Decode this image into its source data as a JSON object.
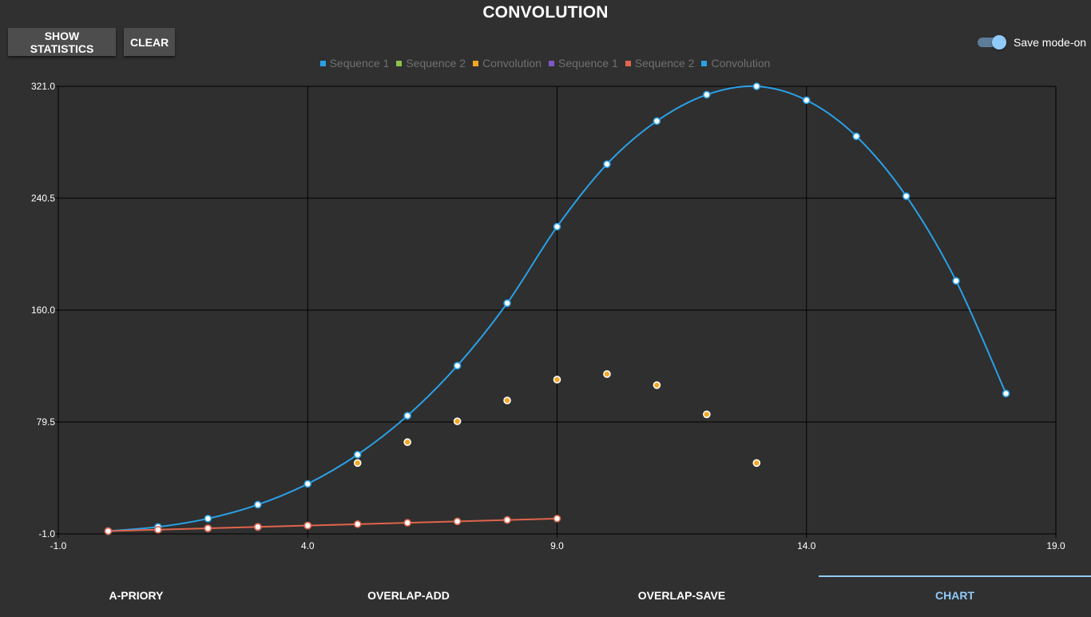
{
  "app": {
    "title": "CONVOLUTION"
  },
  "toolbar": {
    "show_statistics_label": "SHOW STATISTICS",
    "clear_label": "CLEAR"
  },
  "save_mode": {
    "label": "Save mode-on",
    "on": true
  },
  "legend": [
    {
      "label": "Sequence 1",
      "color": "#2aa0e6"
    },
    {
      "label": "Sequence 2",
      "color": "#8bc34a"
    },
    {
      "label": "Convolution",
      "color": "#f5a623"
    },
    {
      "label": "Sequence 1",
      "color": "#7e57c2"
    },
    {
      "label": "Sequence 2",
      "color": "#e0644b"
    },
    {
      "label": "Convolution",
      "color": "#2aa0e6"
    }
  ],
  "chart_data": {
    "type": "line",
    "xlim": [
      -1,
      19
    ],
    "ylim": [
      -1,
      321
    ],
    "x_ticks": [
      "-1.0",
      "4.0",
      "9.0",
      "14.0",
      "19.0"
    ],
    "y_ticks": [
      "-1.0",
      "79.5",
      "160.0",
      "240.5",
      "321.0"
    ],
    "grid": true,
    "series": [
      {
        "name": "Convolution",
        "color": "#2aa0e6",
        "line": true,
        "x": [
          0,
          1,
          2,
          3,
          4,
          5,
          6,
          7,
          8,
          9,
          10,
          11,
          12,
          13,
          14,
          15,
          16,
          17,
          18
        ],
        "y": [
          1,
          4,
          10,
          20,
          35,
          56,
          84,
          120,
          165,
          220,
          265,
          296,
          315,
          321,
          311,
          285,
          242,
          181,
          100
        ]
      },
      {
        "name": "Sequence 2",
        "color": "#e0644b",
        "line": true,
        "x": [
          0,
          1,
          2,
          3,
          4,
          5,
          6,
          7,
          8,
          9
        ],
        "y": [
          1,
          2,
          3,
          4,
          5,
          6,
          7,
          8,
          9,
          10
        ]
      },
      {
        "name": "Convolution",
        "color": "#f5a623",
        "line": false,
        "x": [
          0,
          1,
          2,
          3,
          4,
          5,
          6,
          7,
          8,
          9,
          10,
          11,
          12,
          13
        ],
        "y": [
          1,
          2,
          3,
          4,
          5,
          50,
          65,
          80,
          95,
          110,
          114,
          106,
          85,
          50
        ]
      }
    ]
  },
  "tabs": [
    {
      "label": "A-PRIORY",
      "active": false
    },
    {
      "label": "OVERLAP-ADD",
      "active": false
    },
    {
      "label": "OVERLAP-SAVE",
      "active": false
    },
    {
      "label": "CHART",
      "active": true
    }
  ]
}
